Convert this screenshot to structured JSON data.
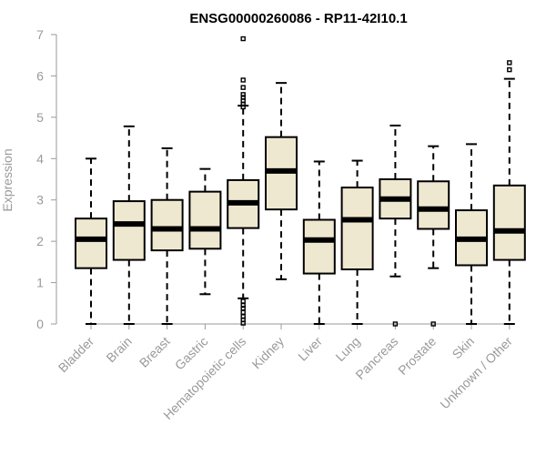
{
  "chart_data": {
    "type": "box",
    "title": "ENSG00000260086 - RP11-42I10.1",
    "ylabel": "Expression",
    "xlabel": "",
    "ylim": [
      0,
      7
    ],
    "yticks": [
      "0",
      "1",
      "2",
      "3",
      "4",
      "5",
      "6",
      "7"
    ],
    "grid": false,
    "box_fill": "#efe8d0",
    "categories": [
      "Bladder",
      "Brain",
      "Breast",
      "Gastric",
      "Hematopoietic cells",
      "Kidney",
      "Liver",
      "Lung",
      "Pancreas",
      "Prostate",
      "Skin",
      "Unknown / Other"
    ],
    "boxes": [
      {
        "min": 0.0,
        "q1": 1.35,
        "median": 2.05,
        "q3": 2.55,
        "max": 4.0,
        "outliers": []
      },
      {
        "min": 0.0,
        "q1": 1.55,
        "median": 2.42,
        "q3": 2.97,
        "max": 4.78,
        "outliers": []
      },
      {
        "min": 0.0,
        "q1": 1.78,
        "median": 2.3,
        "q3": 3.0,
        "max": 4.25,
        "outliers": []
      },
      {
        "min": 0.72,
        "q1": 1.82,
        "median": 2.3,
        "q3": 3.2,
        "max": 3.75,
        "outliers": []
      },
      {
        "min": 0.62,
        "q1": 2.32,
        "median": 2.93,
        "q3": 3.48,
        "max": 5.28,
        "outliers": [
          6.9,
          5.9,
          5.72,
          5.55,
          5.48,
          5.4,
          5.32,
          5.25,
          0.55,
          0.45,
          0.38,
          0.28,
          0.18,
          0.1,
          0.02
        ]
      },
      {
        "min": 1.08,
        "q1": 2.77,
        "median": 3.7,
        "q3": 4.52,
        "max": 5.83,
        "outliers": []
      },
      {
        "min": 0.0,
        "q1": 1.22,
        "median": 2.03,
        "q3": 2.52,
        "max": 3.93,
        "outliers": []
      },
      {
        "min": 0.0,
        "q1": 1.32,
        "median": 2.52,
        "q3": 3.3,
        "max": 3.95,
        "outliers": []
      },
      {
        "min": 1.15,
        "q1": 2.55,
        "median": 3.02,
        "q3": 3.5,
        "max": 4.8,
        "outliers": [
          0.0
        ]
      },
      {
        "min": 1.35,
        "q1": 2.3,
        "median": 2.78,
        "q3": 3.45,
        "max": 4.3,
        "outliers": [
          0.0
        ]
      },
      {
        "min": 0.0,
        "q1": 1.42,
        "median": 2.05,
        "q3": 2.75,
        "max": 4.35,
        "outliers": []
      },
      {
        "min": 0.0,
        "q1": 1.55,
        "median": 2.25,
        "q3": 3.35,
        "max": 5.93,
        "outliers": [
          6.32,
          6.15
        ]
      }
    ]
  }
}
